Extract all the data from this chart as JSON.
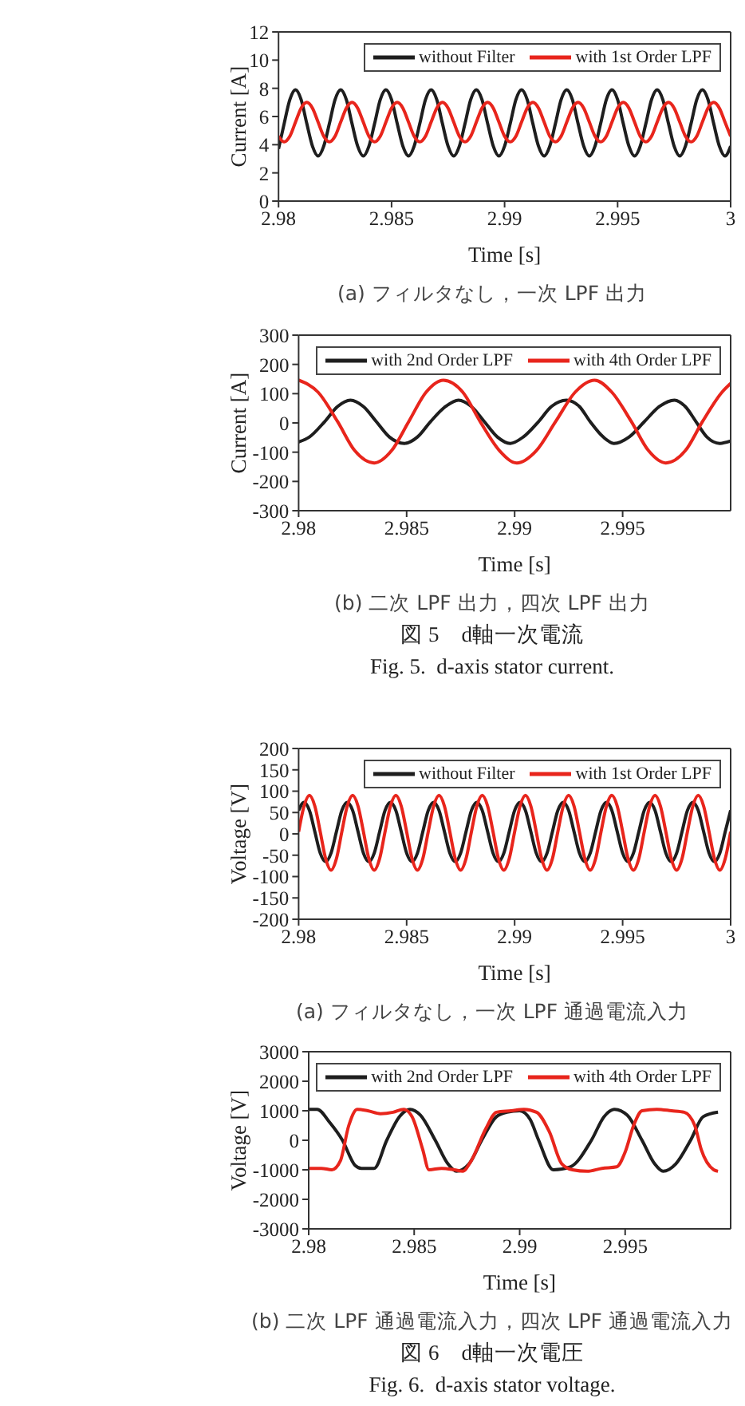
{
  "chart_data": [
    {
      "type": "line",
      "title": "(a) フィルタなし，一次 LPF 出力",
      "xlabel": "Time [s]",
      "ylabel": "Current [A]",
      "legend": "top right",
      "xlim": [
        2.98,
        3
      ],
      "xticks": [
        2.98,
        2.985,
        2.99,
        2.995,
        3
      ],
      "ylim": [
        0,
        12
      ],
      "yticks": [
        0,
        2,
        4,
        6,
        8,
        10,
        12
      ],
      "x": [
        2.98,
        2.98025,
        2.9805,
        2.98075,
        2.981,
        2.98125,
        2.9815,
        2.98175,
        2.982,
        2.98225,
        2.9825,
        2.98275,
        2.983,
        2.98325,
        2.9835,
        2.98375,
        2.984,
        2.98425,
        2.9845,
        2.98475,
        2.985,
        2.98525,
        2.9855,
        2.98575,
        2.986,
        2.98625,
        2.9865,
        2.98675,
        2.987,
        2.98725,
        2.9875,
        2.98775,
        2.988,
        2.98825,
        2.9885,
        2.98875,
        2.989,
        2.98925,
        2.9895,
        2.98975,
        2.99,
        2.99025,
        2.9905,
        2.99075,
        2.991,
        2.99125,
        2.9915,
        2.99175,
        2.992,
        2.99225,
        2.9925,
        2.99275,
        2.993,
        2.99325,
        2.9935,
        2.99375,
        2.994,
        2.99425,
        2.9945,
        2.99475,
        2.995,
        2.99525,
        2.9955,
        2.99575,
        2.996,
        2.99625,
        2.9965,
        2.99675,
        2.997,
        2.99725,
        2.9975,
        2.99775,
        2.998,
        2.99825,
        2.9985,
        2.99875,
        2.999,
        2.99925,
        2.9995,
        2.99975,
        3
      ],
      "series": [
        {
          "name": "without Filter",
          "color": "#1e1e1e",
          "values": [
            3.7,
            5.5,
            7.2,
            7.9,
            7.2,
            5.5,
            3.9,
            3.2,
            3.9,
            5.5,
            7.2,
            7.9,
            7.2,
            5.5,
            3.9,
            3.2,
            3.9,
            5.5,
            7.2,
            7.9,
            7.2,
            5.5,
            3.9,
            3.2,
            3.9,
            5.5,
            7.2,
            7.9,
            7.2,
            5.5,
            3.9,
            3.2,
            3.9,
            5.5,
            7.2,
            7.9,
            7.2,
            5.5,
            3.9,
            3.2,
            3.9,
            5.5,
            7.2,
            7.9,
            7.2,
            5.5,
            3.9,
            3.2,
            3.9,
            5.5,
            7.2,
            7.9,
            7.2,
            5.5,
            3.9,
            3.2,
            3.9,
            5.5,
            7.2,
            7.9,
            7.2,
            5.5,
            3.9,
            3.2,
            3.9,
            5.5,
            7.2,
            7.9,
            7.2,
            5.5,
            3.9,
            3.2,
            3.9,
            5.5,
            7.2,
            7.9,
            7.2,
            5.5,
            3.9,
            3.2,
            3.9
          ]
        },
        {
          "name": "with 1st Order LPF",
          "color": "#e8251c",
          "values": [
            4.6,
            4.2,
            4.6,
            5.6,
            6.6,
            7.0,
            6.6,
            5.6,
            4.6,
            4.2,
            4.6,
            5.6,
            6.6,
            7.0,
            6.6,
            5.6,
            4.6,
            4.2,
            4.6,
            5.6,
            6.6,
            7.0,
            6.6,
            5.6,
            4.6,
            4.2,
            4.6,
            5.6,
            6.6,
            7.0,
            6.6,
            5.6,
            4.6,
            4.2,
            4.6,
            5.6,
            6.6,
            7.0,
            6.6,
            5.6,
            4.6,
            4.2,
            4.6,
            5.6,
            6.6,
            7.0,
            6.6,
            5.6,
            4.6,
            4.2,
            4.6,
            5.6,
            6.6,
            7.0,
            6.6,
            5.6,
            4.6,
            4.2,
            4.6,
            5.6,
            6.6,
            7.0,
            6.6,
            5.6,
            4.6,
            4.2,
            4.6,
            5.6,
            6.6,
            7.0,
            6.6,
            5.6,
            4.6,
            4.2,
            4.6,
            5.6,
            6.6,
            7.0,
            6.6,
            5.6,
            4.6
          ]
        }
      ]
    },
    {
      "type": "line",
      "title": "(b) 二次 LPF 出力，四次 LPF 出力",
      "xlabel": "Time [s]",
      "ylabel": "Current [A]",
      "legend": "top right",
      "annotations": [
        "図 5　d軸一次電流",
        "Fig. 5.  d-axis stator current."
      ],
      "xlim": [
        2.98,
        3
      ],
      "xticks": [
        2.98,
        2.985,
        2.99,
        2.995
      ],
      "ylim": [
        -300,
        300
      ],
      "yticks": [
        -300,
        -200,
        -100,
        0,
        100,
        200,
        300
      ],
      "series": [
        {
          "name": "with 2nd Order LPF",
          "color": "#1e1e1e",
          "x": [
            2.98,
            2.9805,
            2.9812,
            2.9818,
            2.9824,
            2.983,
            2.9836,
            2.9842,
            2.9849,
            2.9855,
            2.9861,
            2.9868,
            2.9874,
            2.988,
            2.9886,
            2.9892,
            2.9898,
            2.9904,
            2.9911,
            2.9917,
            2.9924,
            2.993,
            2.9935,
            2.9941,
            2.9946,
            2.9953,
            2.996,
            2.9967,
            2.9974,
            2.9979,
            2.9984,
            2.9989,
            2.9995,
            3
          ],
          "values": [
            -65,
            -48,
            4,
            56,
            78,
            56,
            4,
            -48,
            -70,
            -48,
            4,
            56,
            78,
            56,
            4,
            -48,
            -70,
            -48,
            4,
            56,
            78,
            56,
            4,
            -48,
            -70,
            -48,
            4,
            56,
            78,
            56,
            4,
            -48,
            -70,
            -62
          ]
        },
        {
          "name": "with 4th Order LPF",
          "color": "#e8251c",
          "x": [
            2.98,
            2.9809,
            2.9818,
            2.9826,
            2.9835,
            2.9843,
            2.9851,
            2.9859,
            2.9867,
            2.9876,
            2.9884,
            2.9893,
            2.9901,
            2.991,
            2.9919,
            2.9928,
            2.9937,
            2.9945,
            2.9954,
            2.9962,
            2.997,
            2.9979,
            2.9987,
            2.9996,
            3
          ],
          "values": [
            146,
            105,
            5,
            -95,
            -137,
            -95,
            5,
            105,
            146,
            105,
            5,
            -95,
            -137,
            -95,
            5,
            105,
            146,
            105,
            5,
            -95,
            -137,
            -95,
            5,
            105,
            135
          ]
        }
      ]
    },
    {
      "type": "line",
      "title": "(a) フィルタなし，一次 LPF 通過電流入力",
      "xlabel": "Time [s]",
      "ylabel": "Voltage [V]",
      "legend": "top right",
      "xlim": [
        2.98,
        3
      ],
      "xticks": [
        2.98,
        2.985,
        2.99,
        2.995,
        3
      ],
      "ylim": [
        -200,
        200
      ],
      "yticks": [
        -200,
        -150,
        -100,
        -50,
        0,
        50,
        100,
        150,
        200
      ],
      "x": [
        2.98,
        2.98025,
        2.9805,
        2.98075,
        2.981,
        2.98125,
        2.9815,
        2.98175,
        2.982,
        2.98225,
        2.9825,
        2.98275,
        2.983,
        2.98325,
        2.9835,
        2.98375,
        2.984,
        2.98425,
        2.9845,
        2.98475,
        2.985,
        2.98525,
        2.9855,
        2.98575,
        2.986,
        2.98625,
        2.9865,
        2.98675,
        2.987,
        2.98725,
        2.9875,
        2.98775,
        2.988,
        2.98825,
        2.9885,
        2.98875,
        2.989,
        2.98925,
        2.9895,
        2.98975,
        2.99,
        2.99025,
        2.9905,
        2.99075,
        2.991,
        2.99125,
        2.9915,
        2.99175,
        2.992,
        2.99225,
        2.9925,
        2.99275,
        2.993,
        2.99325,
        2.9935,
        2.99375,
        2.994,
        2.99425,
        2.9945,
        2.99475,
        2.995,
        2.99525,
        2.9955,
        2.99575,
        2.996,
        2.99625,
        2.9965,
        2.99675,
        2.997,
        2.99725,
        2.9975,
        2.99775,
        2.998,
        2.99825,
        2.9985,
        2.99875,
        2.999,
        2.99925,
        2.9995,
        2.99975,
        3
      ],
      "series": [
        {
          "name": "without Filter",
          "color": "#1e1e1e",
          "values": [
            55,
            74,
            55,
            5,
            -45,
            -65,
            -45,
            5,
            55,
            74,
            55,
            5,
            -45,
            -65,
            -45,
            5,
            55,
            74,
            55,
            5,
            -45,
            -65,
            -45,
            5,
            55,
            74,
            55,
            5,
            -45,
            -65,
            -45,
            5,
            55,
            74,
            55,
            5,
            -45,
            -65,
            -45,
            5,
            55,
            74,
            55,
            5,
            -45,
            -65,
            -45,
            5,
            55,
            74,
            55,
            5,
            -45,
            -65,
            -45,
            5,
            55,
            74,
            55,
            5,
            -45,
            -65,
            -45,
            5,
            55,
            74,
            55,
            5,
            -45,
            -65,
            -45,
            5,
            55,
            74,
            55,
            5,
            -45,
            -65,
            -45,
            5,
            55
          ]
        },
        {
          "name": "with 1st Order LPF",
          "color": "#e8251c",
          "values": [
            5,
            65,
            90,
            65,
            5,
            -58,
            -85,
            -58,
            5,
            65,
            90,
            65,
            5,
            -58,
            -85,
            -58,
            5,
            65,
            90,
            65,
            5,
            -58,
            -85,
            -58,
            5,
            65,
            90,
            65,
            5,
            -58,
            -85,
            -58,
            5,
            65,
            90,
            65,
            5,
            -58,
            -85,
            -58,
            5,
            65,
            90,
            65,
            5,
            -58,
            -85,
            -58,
            5,
            65,
            90,
            65,
            5,
            -58,
            -85,
            -58,
            5,
            65,
            90,
            65,
            5,
            -58,
            -85,
            -58,
            5,
            65,
            90,
            65,
            5,
            -58,
            -85,
            -58,
            5,
            65,
            90,
            65,
            5,
            -58,
            -85,
            -58,
            5
          ]
        }
      ]
    },
    {
      "type": "line",
      "title": "(b) 二次 LPF 通過電流入力，四次 LPF 通過電流入力",
      "xlabel": "Time [s]",
      "ylabel": "Voltage [V]",
      "legend": "top right",
      "annotations": [
        "図 6　d軸一次電圧",
        "Fig. 6.  d-axis stator voltage."
      ],
      "xlim": [
        2.98,
        3
      ],
      "xticks": [
        2.98,
        2.985,
        2.99,
        2.995
      ],
      "ylim": [
        -3000,
        3000
      ],
      "yticks": [
        -3000,
        -2000,
        -1000,
        0,
        1000,
        2000,
        3000
      ],
      "series": [
        {
          "name": "with 2nd Order LPF",
          "color": "#1e1e1e",
          "x": [
            2.98,
            2.9804,
            2.981,
            2.9816,
            2.9822,
            2.9825,
            2.9831,
            2.9837,
            2.9843,
            2.9848,
            2.9853,
            2.986,
            2.9866,
            2.987,
            2.9876,
            2.9882,
            2.9889,
            2.9894,
            2.99,
            2.9905,
            2.9909,
            2.9916,
            2.9924,
            2.9934,
            2.994,
            2.9945,
            2.9951,
            2.9958,
            2.9964,
            2.9968,
            2.9974,
            2.9981,
            2.9987,
            2.9994
          ],
          "values": [
            1050,
            1050,
            600,
            0,
            -850,
            -950,
            -950,
            0,
            800,
            1050,
            850,
            0,
            -800,
            -1050,
            -800,
            0,
            800,
            950,
            1000,
            700,
            0,
            -1000,
            -900,
            0,
            800,
            1050,
            850,
            0,
            -800,
            -1050,
            -800,
            0,
            800,
            950
          ]
        },
        {
          "name": "with 4th Order LPF",
          "color": "#e8251c",
          "x": [
            2.98,
            2.9806,
            2.9811,
            2.9815,
            2.9819,
            2.9823,
            2.9828,
            2.9834,
            2.984,
            2.9845,
            2.9849,
            2.9854,
            2.9857,
            2.9863,
            2.9869,
            2.9873,
            2.9877,
            2.9884,
            2.9889,
            2.9896,
            2.9902,
            2.9908,
            2.9914,
            2.992,
            2.9925,
            2.9932,
            2.9939,
            2.9946,
            2.995,
            2.9954,
            2.9958,
            2.9965,
            2.9972,
            2.9978,
            2.9983,
            2.9986,
            2.9992,
            2.9994
          ],
          "values": [
            -950,
            -950,
            -1000,
            -700,
            500,
            1050,
            1000,
            900,
            950,
            1050,
            800,
            -300,
            -1000,
            -950,
            -1000,
            -1050,
            -700,
            400,
            950,
            1000,
            1050,
            950,
            300,
            -800,
            -1000,
            -1050,
            -950,
            -900,
            -400,
            500,
            1000,
            1050,
            1000,
            950,
            500,
            -300,
            -1000,
            -1050
          ]
        }
      ]
    }
  ]
}
